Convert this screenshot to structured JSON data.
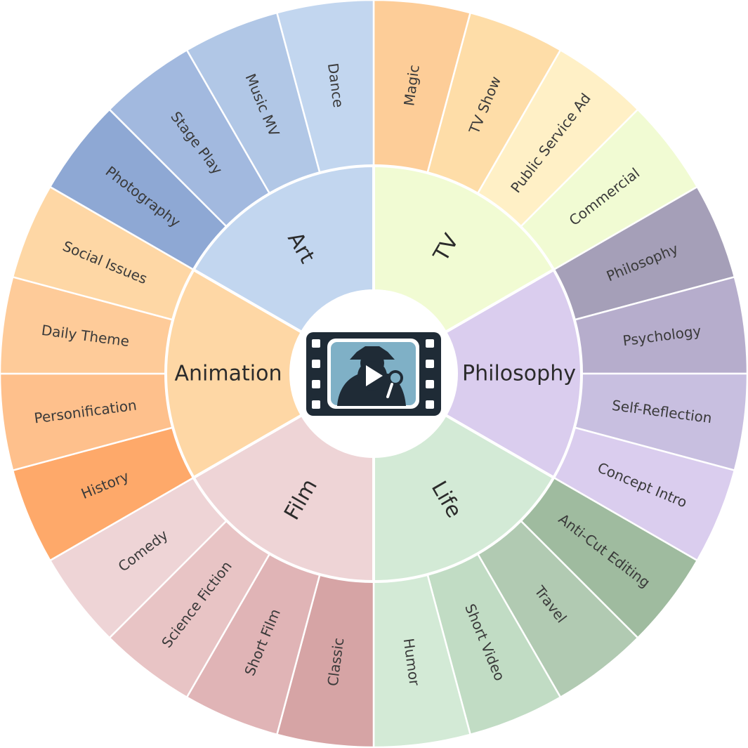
{
  "wheel": {
    "icon": "film-strip-detective-play-icon",
    "categories": [
      {
        "label": "TV",
        "color": "#f1fbd3",
        "items": [
          {
            "label": "Magic",
            "color": "#fdcd98"
          },
          {
            "label": "TV Show",
            "color": "#fedda8"
          },
          {
            "label": "Public Service Ad",
            "color": "#fff0c6"
          },
          {
            "label": "Commercial",
            "color": "#f1fbd3"
          }
        ]
      },
      {
        "label": "Philosophy",
        "color": "#dacdee",
        "items": [
          {
            "label": "Philosophy",
            "color": "#a59fb8"
          },
          {
            "label": "Psychology",
            "color": "#b6adcc"
          },
          {
            "label": "Self-Reflection",
            "color": "#c8bfe0"
          },
          {
            "label": "Concept Intro",
            "color": "#dacdee"
          }
        ]
      },
      {
        "label": "Life",
        "color": "#d3ead6",
        "items": [
          {
            "label": "Anti-Cut Editing",
            "color": "#9fbb9f"
          },
          {
            "label": "Travel",
            "color": "#b1cab2"
          },
          {
            "label": "Short Video",
            "color": "#c1dcc4"
          },
          {
            "label": "Humor",
            "color": "#d3ead6"
          }
        ]
      },
      {
        "label": "Film",
        "color": "#eed4d6",
        "items": [
          {
            "label": "Classic",
            "color": "#d6a4a5"
          },
          {
            "label": "Short Film",
            "color": "#e0b4b6"
          },
          {
            "label": "Science Fiction",
            "color": "#e8c4c5"
          },
          {
            "label": "Comedy",
            "color": "#eed4d6"
          }
        ]
      },
      {
        "label": "Animation",
        "color": "#fed7a5",
        "items": [
          {
            "label": "History",
            "color": "#fea96a"
          },
          {
            "label": "Personification",
            "color": "#fec08c"
          },
          {
            "label": "Daily Theme",
            "color": "#fecb99"
          },
          {
            "label": "Social Issues",
            "color": "#fed7a5"
          }
        ]
      },
      {
        "label": "Art",
        "color": "#c2d6ef",
        "items": [
          {
            "label": "Photography",
            "color": "#8ea8d4"
          },
          {
            "label": "Stage Play",
            "color": "#a2b9df"
          },
          {
            "label": "Music MV",
            "color": "#b1c7e6"
          },
          {
            "label": "Dance",
            "color": "#c2d6ef"
          }
        ]
      }
    ]
  }
}
